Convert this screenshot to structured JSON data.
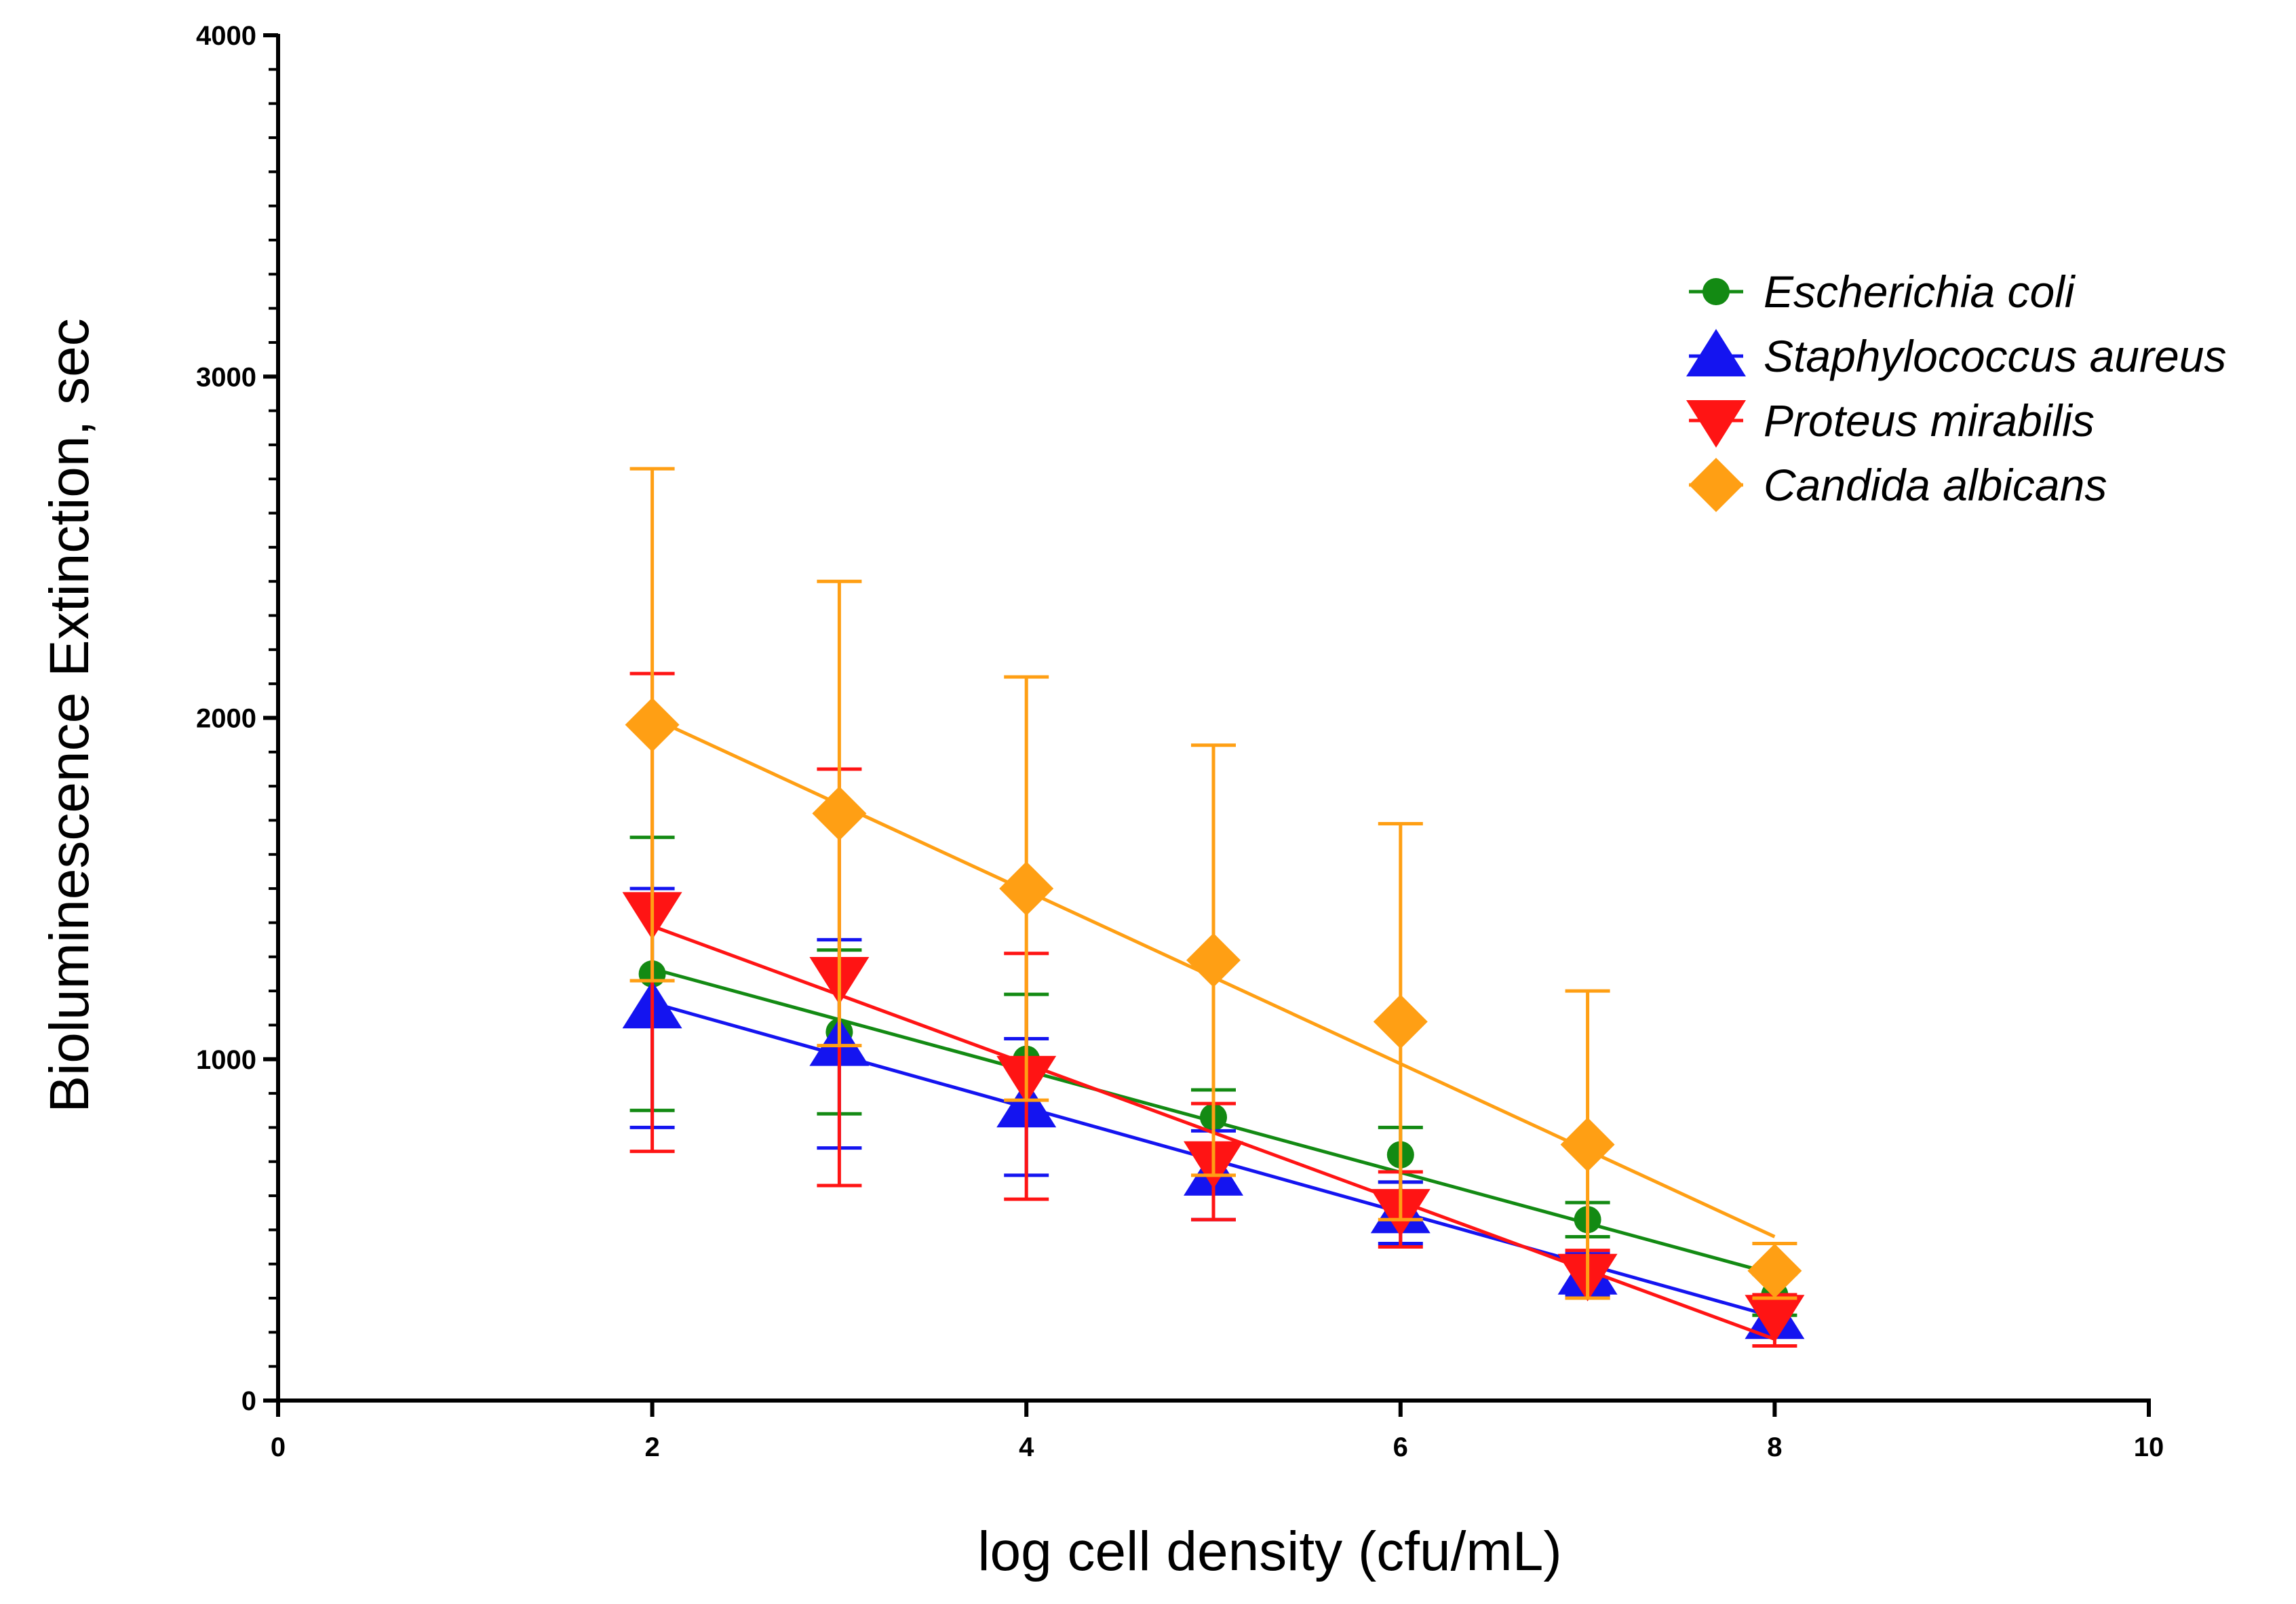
{
  "chart_data": {
    "type": "line",
    "title": "",
    "xlabel": "log cell density (cfu/mL)",
    "ylabel": "Bioluminescence  Extinction, sec",
    "xlim": [
      0,
      10
    ],
    "ylim": [
      0,
      4000
    ],
    "x_major_ticks": [
      0,
      2,
      4,
      6,
      8,
      10
    ],
    "x_tick_labels": [
      "0",
      "2",
      "4",
      "6",
      "8",
      "10"
    ],
    "y_major_ticks": [
      0,
      1000,
      2000,
      3000,
      4000
    ],
    "y_tick_labels": [
      "0",
      "1000",
      "2000",
      "3000",
      "4000"
    ],
    "y_minor_step": 100,
    "grid": false,
    "legend_position": "right",
    "series": [
      {
        "name": "Escherichia coli",
        "color": "#138a13",
        "marker": "circle",
        "x": [
          2,
          3,
          4,
          5,
          6,
          7,
          8
        ],
        "y": [
          1250,
          1080,
          1000,
          830,
          720,
          530,
          310
        ],
        "err_low": [
          400,
          240,
          180,
          80,
          80,
          50,
          60
        ],
        "err_high": [
          400,
          240,
          190,
          80,
          80,
          50,
          60
        ],
        "fit": {
          "x": [
            2,
            8
          ],
          "y": [
            1265,
            370
          ]
        }
      },
      {
        "name": "Staphylococcus aureus",
        "color": "#1414f0",
        "marker": "triangle-up",
        "x": [
          2,
          3,
          4,
          5,
          6,
          7,
          8
        ],
        "y": [
          1150,
          1040,
          860,
          660,
          550,
          370,
          240
        ],
        "err_low": [
          350,
          300,
          200,
          130,
          90,
          60,
          50
        ],
        "err_high": [
          350,
          310,
          200,
          130,
          90,
          60,
          50
        ],
        "fit": {
          "x": [
            2,
            8
          ],
          "y": [
            1165,
            245
          ]
        }
      },
      {
        "name": "Proteus mirabilis",
        "color": "#ff1414",
        "marker": "triangle-down",
        "x": [
          2,
          3,
          4,
          5,
          6,
          7,
          8
        ],
        "y": [
          1430,
          1240,
          950,
          700,
          560,
          370,
          250
        ],
        "err_low": [
          700,
          610,
          360,
          170,
          110,
          70,
          90
        ],
        "err_high": [
          700,
          610,
          360,
          170,
          110,
          70,
          60
        ],
        "fit": {
          "x": [
            2,
            8
          ],
          "y": [
            1390,
            180
          ]
        }
      },
      {
        "name": "Candida albicans",
        "color": "#ff9f14",
        "marker": "diamond",
        "x": [
          2,
          3,
          4,
          5,
          6,
          7,
          8
        ],
        "y": [
          1980,
          1720,
          1500,
          1290,
          1110,
          750,
          380
        ],
        "err_low": [
          750,
          680,
          620,
          630,
          580,
          450,
          80
        ],
        "err_high": [
          750,
          680,
          620,
          630,
          580,
          450,
          80
        ],
        "fit": {
          "x": [
            2,
            8
          ],
          "y": [
            2000,
            480
          ]
        }
      }
    ]
  }
}
